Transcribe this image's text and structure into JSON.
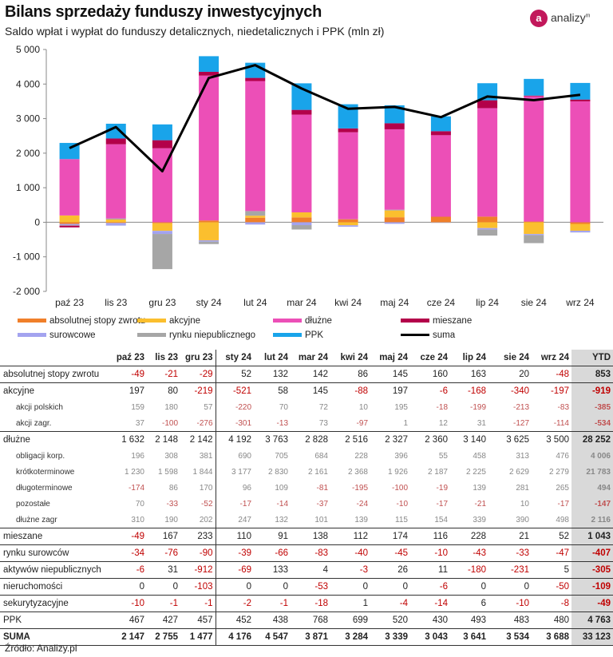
{
  "title": "Bilans sprzedaży funduszy inwestycyjnych",
  "subtitle": "Saldo wpłat i wypłat do funduszy detalicznych, niedetalicznych i PPK (mln zł)",
  "logo": {
    "mark": "a",
    "text": "analizy",
    "sup": "m"
  },
  "source": "Źródło: Analizy.pl",
  "chart_data": {
    "type": "bar",
    "stacked": true,
    "categories": [
      "paź 23",
      "lis 23",
      "gru 23",
      "sty 24",
      "lut 24",
      "mar 24",
      "kwi 24",
      "maj 24",
      "cze 24",
      "lip 24",
      "sie 24",
      "wrz 24"
    ],
    "ylim": [
      -2000,
      5000
    ],
    "yticks": [
      -2000,
      -1000,
      0,
      1000,
      2000,
      3000,
      4000,
      5000
    ],
    "ytick_labels": [
      "-2 000",
      "-1 000",
      "0",
      "1 000",
      "2 000",
      "3 000",
      "4 000",
      "5 000"
    ],
    "grid": false,
    "legend": "bottom",
    "series": [
      {
        "name": "absolutnej stopy zwrotu",
        "color": "#f07f2a",
        "values": [
          -49,
          -21,
          -29,
          52,
          132,
          142,
          86,
          145,
          160,
          163,
          20,
          -48
        ]
      },
      {
        "name": "akcyjne",
        "color": "#fbbf2e",
        "values": [
          197,
          80,
          -219,
          -521,
          58,
          145,
          -88,
          197,
          -6,
          -168,
          -340,
          -197
        ]
      },
      {
        "name": "surowcowe",
        "color": "#a3a3ef",
        "values": [
          -34,
          -76,
          -90,
          -39,
          -66,
          -83,
          -40,
          -45,
          -10,
          -43,
          -33,
          -47
        ]
      },
      {
        "name": "rynku niepublicznego",
        "color": "#a6a6a6",
        "values": [
          -16,
          30,
          -1018,
          -71,
          134,
          -127,
          3,
          22,
          -3,
          -174,
          -231,
          -3
        ]
      },
      {
        "name": "dłużne",
        "color": "#ec4fb7",
        "values": [
          1632,
          2148,
          2142,
          4192,
          3763,
          2828,
          2516,
          2327,
          2360,
          3140,
          3625,
          3500
        ]
      },
      {
        "name": "mieszane",
        "color": "#b3004a",
        "values": [
          -49,
          167,
          233,
          110,
          91,
          138,
          112,
          174,
          116,
          228,
          21,
          52
        ]
      },
      {
        "name": "PPK",
        "color": "#19a4ea",
        "values": [
          467,
          427,
          457,
          452,
          438,
          768,
          699,
          520,
          430,
          493,
          483,
          480
        ]
      }
    ],
    "line": {
      "name": "suma",
      "color": "#000000",
      "values": [
        2147,
        2755,
        1477,
        4176,
        4547,
        3871,
        3284,
        3339,
        3043,
        3641,
        3534,
        3688
      ]
    }
  },
  "table": {
    "columns": [
      "paź 23",
      "lis 23",
      "gru 23",
      "sty 24",
      "lut 24",
      "mar 24",
      "kwi 24",
      "maj 24",
      "cze 24",
      "lip 24",
      "sie 24",
      "wrz 24",
      "YTD"
    ],
    "rows": [
      {
        "label": "absolutnej stopy zwrotu",
        "kind": "main",
        "values": [
          "-49",
          "-21",
          "-29",
          "52",
          "132",
          "142",
          "86",
          "145",
          "160",
          "163",
          "20",
          "-48",
          "853"
        ]
      },
      {
        "label": "akcyjne",
        "kind": "main",
        "values": [
          "197",
          "80",
          "-219",
          "-521",
          "58",
          "145",
          "-88",
          "197",
          "-6",
          "-168",
          "-340",
          "-197",
          "-919"
        ]
      },
      {
        "label": "akcji polskich",
        "kind": "sub",
        "values": [
          "159",
          "180",
          "57",
          "-220",
          "70",
          "72",
          "10",
          "195",
          "-18",
          "-199",
          "-213",
          "-83",
          "-385"
        ]
      },
      {
        "label": "akcji zagr.",
        "kind": "sub",
        "values": [
          "37",
          "-100",
          "-276",
          "-301",
          "-13",
          "73",
          "-97",
          "1",
          "12",
          "31",
          "-127",
          "-114",
          "-534"
        ]
      },
      {
        "label": "dłużne",
        "kind": "main",
        "values": [
          "1 632",
          "2 148",
          "2 142",
          "4 192",
          "3 763",
          "2 828",
          "2 516",
          "2 327",
          "2 360",
          "3 140",
          "3 625",
          "3 500",
          "28 252"
        ]
      },
      {
        "label": "obligacji korp.",
        "kind": "sub",
        "values": [
          "196",
          "308",
          "381",
          "690",
          "705",
          "684",
          "228",
          "396",
          "55",
          "458",
          "313",
          "476",
          "4 006"
        ]
      },
      {
        "label": "krótkoterminowe",
        "kind": "sub",
        "values": [
          "1 230",
          "1 598",
          "1 844",
          "3 177",
          "2 830",
          "2 161",
          "2 368",
          "1 926",
          "2 187",
          "2 225",
          "2 629",
          "2 279",
          "21 783"
        ]
      },
      {
        "label": "długoterminowe",
        "kind": "sub",
        "values": [
          "-174",
          "86",
          "170",
          "96",
          "109",
          "-81",
          "-195",
          "-100",
          "-19",
          "139",
          "281",
          "265",
          "494"
        ]
      },
      {
        "label": "pozostałe",
        "kind": "sub",
        "values": [
          "70",
          "-33",
          "-52",
          "-17",
          "-14",
          "-37",
          "-24",
          "-10",
          "-17",
          "-21",
          "10",
          "-17",
          "-147"
        ]
      },
      {
        "label": "dłużne zagr",
        "kind": "sub",
        "values": [
          "310",
          "190",
          "202",
          "247",
          "132",
          "101",
          "139",
          "115",
          "154",
          "339",
          "390",
          "498",
          "2 116"
        ]
      },
      {
        "label": "mieszane",
        "kind": "main",
        "values": [
          "-49",
          "167",
          "233",
          "110",
          "91",
          "138",
          "112",
          "174",
          "116",
          "228",
          "21",
          "52",
          "1 043"
        ]
      },
      {
        "label": "rynku surowców",
        "kind": "main",
        "values": [
          "-34",
          "-76",
          "-90",
          "-39",
          "-66",
          "-83",
          "-40",
          "-45",
          "-10",
          "-43",
          "-33",
          "-47",
          "-407"
        ]
      },
      {
        "label": "aktywów niepublicznych",
        "kind": "main",
        "values": [
          "-6",
          "31",
          "-912",
          "-69",
          "133",
          "4",
          "-3",
          "26",
          "11",
          "-180",
          "-231",
          "5",
          "-305"
        ]
      },
      {
        "label": "nieruchomości",
        "kind": "main",
        "values": [
          "0",
          "0",
          "-103",
          "0",
          "0",
          "-53",
          "0",
          "0",
          "-6",
          "0",
          "0",
          "-50",
          "-109"
        ]
      },
      {
        "label": "sekurytyzacyjne",
        "kind": "main",
        "values": [
          "-10",
          "-1",
          "-1",
          "-2",
          "-1",
          "-18",
          "1",
          "-4",
          "-14",
          "6",
          "-10",
          "-8",
          "-49"
        ]
      },
      {
        "label": "PPK",
        "kind": "main",
        "values": [
          "467",
          "427",
          "457",
          "452",
          "438",
          "768",
          "699",
          "520",
          "430",
          "493",
          "483",
          "480",
          "4 763"
        ]
      },
      {
        "label": "SUMA",
        "kind": "total",
        "values": [
          "2 147",
          "2 755",
          "1 477",
          "4 176",
          "4 547",
          "3 871",
          "3 284",
          "3 339",
          "3 043",
          "3 641",
          "3 534",
          "3 688",
          "33 123"
        ]
      }
    ]
  }
}
